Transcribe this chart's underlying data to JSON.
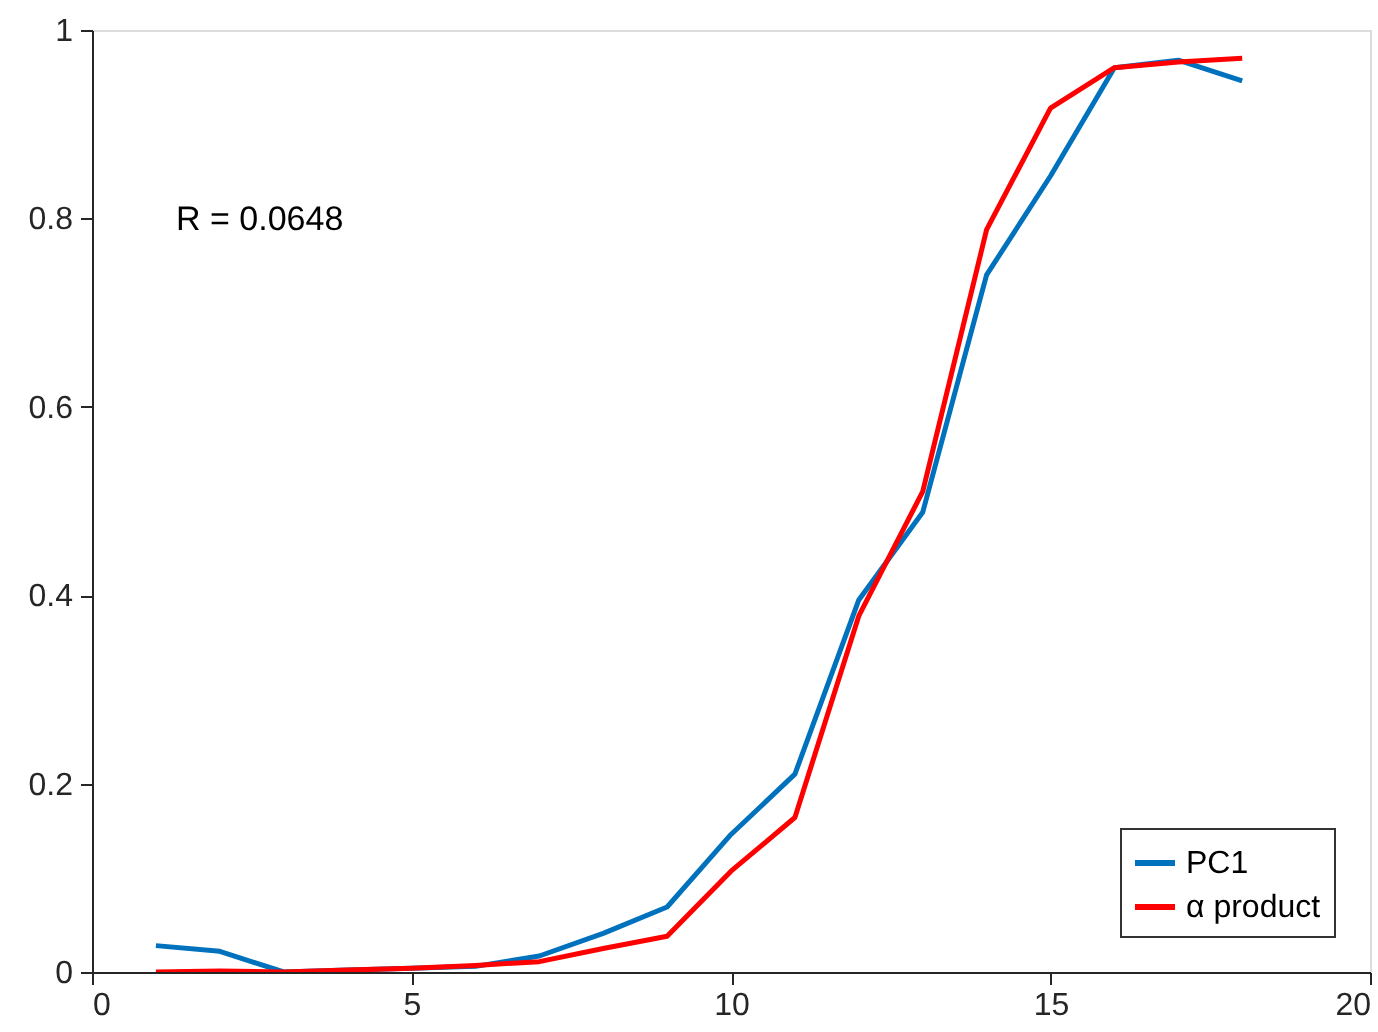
{
  "chart_data": {
    "type": "line",
    "x": [
      1,
      2,
      3,
      4,
      5,
      6,
      7,
      8,
      9,
      10,
      11,
      12,
      13,
      14,
      15,
      16,
      17,
      18
    ],
    "series": [
      {
        "name": "PC1",
        "color": "#0072bd",
        "values": [
          0.028,
          0.022,
          0.0,
          0.002,
          0.004,
          0.006,
          0.017,
          0.041,
          0.069,
          0.146,
          0.21,
          0.395,
          0.488,
          0.74,
          0.845,
          0.96,
          0.968,
          0.946
        ]
      },
      {
        "name": "α product",
        "color": "#ff0000",
        "values": [
          0.0,
          0.001,
          0.0,
          0.002,
          0.004,
          0.007,
          0.011,
          0.025,
          0.038,
          0.107,
          0.164,
          0.378,
          0.51,
          0.788,
          0.917,
          0.96,
          0.966,
          0.97
        ]
      }
    ],
    "xlim": [
      0,
      20
    ],
    "xticks": [
      0,
      5,
      10,
      15,
      20
    ],
    "ylim": [
      0,
      1
    ],
    "yticks": [
      0,
      0.2,
      0.4,
      0.6,
      0.8,
      1
    ],
    "annotations": [
      "R = 0.0648"
    ],
    "grid": false,
    "legend": "bottom right",
    "marker": "none",
    "line_style": "solid"
  }
}
